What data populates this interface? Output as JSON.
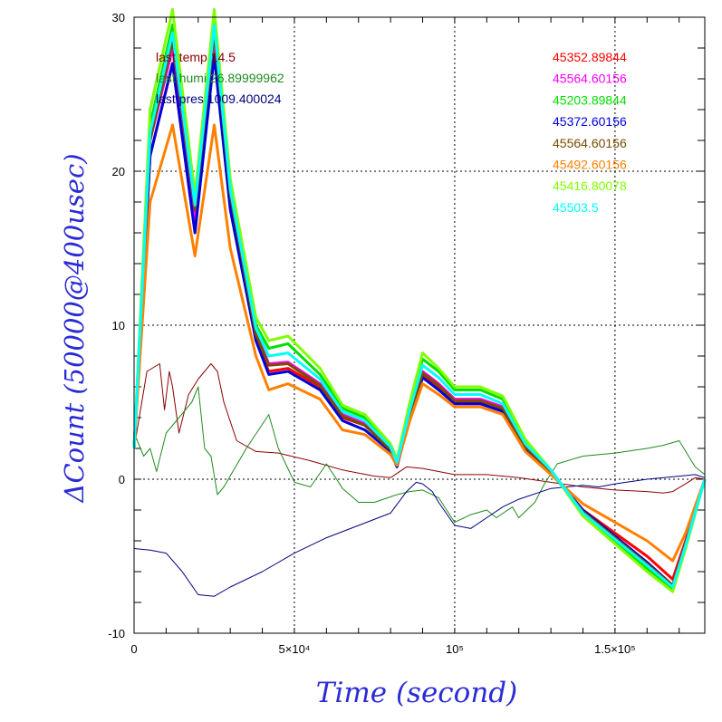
{
  "chart_data": {
    "type": "line",
    "title": "",
    "xlabel": "Time (second)",
    "ylabel": "ΔCount (50000@400usec)",
    "xlim": [
      0,
      178000
    ],
    "ylim": [
      -10,
      30
    ],
    "grid": true,
    "x_ticks": [
      {
        "value": 0,
        "label": "0"
      },
      {
        "value": 50000,
        "label": "5×10⁴"
      },
      {
        "value": 100000,
        "label": "10⁵"
      },
      {
        "value": 150000,
        "label": "1.5×10⁵"
      }
    ],
    "y_ticks": [
      {
        "value": -10,
        "label": "-10"
      },
      {
        "value": 0,
        "label": "0"
      },
      {
        "value": 10,
        "label": "10"
      },
      {
        "value": 20,
        "label": "20"
      },
      {
        "value": 30,
        "label": "30"
      }
    ],
    "env_annotations": [
      {
        "text": "last temp 14.5",
        "color": "#8b0000"
      },
      {
        "text": "last humi 26.89999962",
        "color": "#1f8b1f"
      },
      {
        "text": "last pres 1009.400024",
        "color": "#00007f"
      }
    ],
    "series": [
      {
        "name": "45352.89844",
        "color": "#ff0000",
        "width": 3,
        "x": [
          0,
          5000,
          12000,
          19000,
          25000,
          30000,
          38000,
          42000,
          48000,
          58000,
          65000,
          72000,
          80000,
          82000,
          86000,
          90000,
          95000,
          100000,
          108000,
          115000,
          122000,
          130000,
          140000,
          150000,
          160000,
          168000,
          172000,
          178000
        ],
        "y": [
          2,
          21,
          27,
          16,
          28,
          18,
          9,
          7,
          7.2,
          6,
          4,
          3.5,
          2,
          1,
          4,
          6.8,
          6,
          5,
          5,
          4.5,
          2,
          0.5,
          -2,
          -3.5,
          -5,
          -6.5,
          -4,
          0
        ]
      },
      {
        "name": "45564.60156",
        "color": "#ff00ff",
        "width": 3,
        "x": [
          0,
          5000,
          12000,
          19000,
          25000,
          30000,
          38000,
          42000,
          48000,
          58000,
          65000,
          72000,
          80000,
          82000,
          86000,
          90000,
          95000,
          100000,
          108000,
          115000,
          122000,
          130000,
          140000,
          150000,
          160000,
          168000,
          172000,
          178000
        ],
        "y": [
          2,
          22,
          28,
          17,
          28.5,
          18.5,
          9.5,
          7.5,
          7.6,
          6.2,
          4.2,
          3.6,
          2,
          1,
          4.2,
          7,
          6.2,
          5.2,
          5.2,
          4.7,
          2.2,
          0.5,
          -2.1,
          -3.8,
          -5.4,
          -6.9,
          -4.2,
          0
        ]
      },
      {
        "name": "45203.89844",
        "color": "#00e000",
        "width": 3,
        "x": [
          0,
          5000,
          12000,
          19000,
          25000,
          30000,
          38000,
          42000,
          48000,
          58000,
          65000,
          72000,
          80000,
          82000,
          86000,
          90000,
          95000,
          100000,
          108000,
          115000,
          122000,
          130000,
          140000,
          150000,
          160000,
          168000,
          172000,
          178000
        ],
        "y": [
          2,
          23,
          29.5,
          18,
          30,
          19,
          10,
          8.5,
          8.8,
          6.8,
          4.6,
          4,
          2.2,
          1.2,
          4.8,
          7.8,
          7,
          5.8,
          5.8,
          5.2,
          2.5,
          0.6,
          -2.3,
          -4,
          -5.8,
          -7.2,
          -4.4,
          0
        ]
      },
      {
        "name": "45372.60156",
        "color": "#0000dd",
        "width": 3,
        "x": [
          0,
          5000,
          12000,
          19000,
          25000,
          30000,
          38000,
          42000,
          48000,
          58000,
          65000,
          72000,
          80000,
          82000,
          86000,
          90000,
          95000,
          100000,
          108000,
          115000,
          122000,
          130000,
          140000,
          150000,
          160000,
          168000,
          172000,
          178000
        ],
        "y": [
          2,
          21,
          27,
          16,
          27.5,
          17.5,
          9,
          6.8,
          7,
          5.8,
          3.8,
          3.2,
          1.8,
          0.8,
          4,
          6.6,
          5.8,
          4.9,
          4.9,
          4.4,
          1.9,
          0.4,
          -2,
          -3.7,
          -5.4,
          -6.9,
          -4.2,
          0
        ]
      },
      {
        "name": "45564.60156",
        "color": "#7a4b00",
        "width": 3,
        "x": [
          0,
          5000,
          12000,
          19000,
          25000,
          30000,
          38000,
          42000,
          48000,
          58000,
          65000,
          72000,
          80000,
          82000,
          86000,
          90000,
          95000,
          100000,
          108000,
          115000,
          122000,
          130000,
          140000,
          150000,
          160000,
          168000,
          172000,
          178000
        ],
        "y": [
          2,
          22,
          28.5,
          17.5,
          29,
          18.5,
          9.4,
          7.4,
          7.5,
          6.1,
          4.1,
          3.5,
          1.9,
          1,
          4.1,
          6.9,
          6.1,
          5.1,
          5.1,
          4.6,
          2.1,
          0.5,
          -2.1,
          -3.8,
          -5.5,
          -6.9,
          -4.2,
          0
        ]
      },
      {
        "name": "45492.60156",
        "color": "#ff8000",
        "width": 3,
        "x": [
          0,
          5000,
          12000,
          19000,
          25000,
          30000,
          38000,
          42000,
          48000,
          58000,
          65000,
          72000,
          80000,
          82000,
          86000,
          90000,
          95000,
          100000,
          108000,
          115000,
          122000,
          130000,
          140000,
          150000,
          160000,
          168000,
          172000,
          178000
        ],
        "y": [
          2,
          18,
          23,
          14.5,
          23,
          15,
          8,
          5.8,
          6.2,
          5.2,
          3.2,
          2.9,
          1.6,
          0.9,
          3.8,
          6.2,
          5.5,
          4.7,
          4.7,
          4.2,
          1.8,
          0.3,
          -1.6,
          -2.8,
          -4,
          -5.3,
          -3.5,
          0
        ]
      },
      {
        "name": "45416.80078",
        "color": "#7fff00",
        "width": 3,
        "x": [
          0,
          5000,
          12000,
          19000,
          25000,
          30000,
          38000,
          42000,
          48000,
          58000,
          65000,
          72000,
          80000,
          82000,
          86000,
          90000,
          95000,
          100000,
          108000,
          115000,
          122000,
          130000,
          140000,
          150000,
          160000,
          168000,
          172000,
          178000
        ],
        "y": [
          2,
          24,
          30.5,
          18.5,
          30.5,
          19.5,
          10.5,
          9,
          9.3,
          7.2,
          4.8,
          4.2,
          2.3,
          1.3,
          5,
          8.2,
          7.2,
          6,
          6,
          5.4,
          2.6,
          0.6,
          -2.4,
          -4.2,
          -6,
          -7.3,
          -4.5,
          0
        ]
      },
      {
        "name": "45503.5",
        "color": "#00ffff",
        "width": 3,
        "x": [
          0,
          5000,
          12000,
          19000,
          25000,
          30000,
          38000,
          42000,
          48000,
          58000,
          65000,
          72000,
          80000,
          82000,
          86000,
          90000,
          95000,
          100000,
          108000,
          115000,
          122000,
          130000,
          140000,
          150000,
          160000,
          168000,
          172000,
          178000
        ],
        "y": [
          2,
          22.5,
          29,
          17.8,
          29.5,
          18.8,
          9.8,
          8,
          8.2,
          6.5,
          4.4,
          3.8,
          2.1,
          1.1,
          4.5,
          7.4,
          6.6,
          5.5,
          5.5,
          4.9,
          2.3,
          0.6,
          -2.2,
          -3.9,
          -5.6,
          -7,
          -4.3,
          0
        ]
      },
      {
        "name": "",
        "color": "#8b0000",
        "width": 1,
        "env": true,
        "x": [
          0,
          4000,
          8000,
          9500,
          11000,
          12000,
          14000,
          17000,
          20000,
          24000,
          26000,
          28000,
          32000,
          38000,
          45000,
          55000,
          65000,
          75000,
          80000,
          85000,
          90000,
          100000,
          110000,
          120000,
          130000,
          140000,
          150000,
          160000,
          165000,
          168000,
          172000,
          175000,
          178000
        ],
        "y": [
          2,
          7,
          7.5,
          4.5,
          7,
          6,
          3,
          5.5,
          6.5,
          7.5,
          7,
          5,
          2.5,
          1.8,
          1.7,
          1.2,
          0.6,
          0.2,
          0.1,
          0.8,
          0.7,
          0.3,
          0.3,
          0.1,
          -0.2,
          -0.5,
          -0.7,
          -0.8,
          -0.9,
          -0.8,
          -0.3,
          0.1,
          0
        ]
      },
      {
        "name": "",
        "color": "#1f8b1f",
        "width": 1,
        "env": true,
        "x": [
          0,
          3000,
          5000,
          7000,
          10000,
          14000,
          18000,
          20000,
          22000,
          24000,
          26000,
          28000,
          35000,
          42000,
          45000,
          50000,
          55000,
          60000,
          65000,
          70000,
          75000,
          82000,
          86000,
          90000,
          95000,
          100000,
          105000,
          110000,
          113000,
          118000,
          120000,
          125000,
          128000,
          132000,
          140000,
          150000,
          160000,
          165000,
          170000,
          175000,
          178000
        ],
        "y": [
          3,
          1.5,
          2,
          0.5,
          3,
          4,
          5,
          6,
          2,
          1.5,
          -1,
          -0.5,
          2,
          4.2,
          2,
          -0.2,
          -0.5,
          1,
          -0.6,
          -1.5,
          -1.5,
          -1,
          -0.8,
          -0.7,
          -1.2,
          -2.8,
          -2.3,
          -2,
          -2.5,
          -1.8,
          -2.5,
          -1.5,
          -0.3,
          1,
          1.5,
          1.7,
          2,
          2.2,
          2.5,
          0.8,
          0.3
        ]
      },
      {
        "name": "",
        "color": "#00007f",
        "width": 1,
        "env": true,
        "x": [
          0,
          5000,
          10000,
          15000,
          20000,
          25000,
          30000,
          40000,
          50000,
          60000,
          70000,
          80000,
          85000,
          88000,
          90000,
          93000,
          95000,
          100000,
          105000,
          110000,
          115000,
          120000,
          130000,
          140000,
          145000,
          150000,
          160000,
          170000,
          175000,
          178000
        ],
        "y": [
          -4.5,
          -4.6,
          -4.8,
          -6,
          -7.5,
          -7.6,
          -7,
          -6,
          -4.8,
          -3.8,
          -3,
          -2.2,
          -0.8,
          -0.2,
          -0.3,
          -0.8,
          -1.5,
          -3,
          -3.2,
          -2.5,
          -1.8,
          -1.3,
          -0.6,
          -0.4,
          -0.5,
          -0.3,
          0,
          0.2,
          0.3,
          0.1
        ]
      }
    ]
  }
}
